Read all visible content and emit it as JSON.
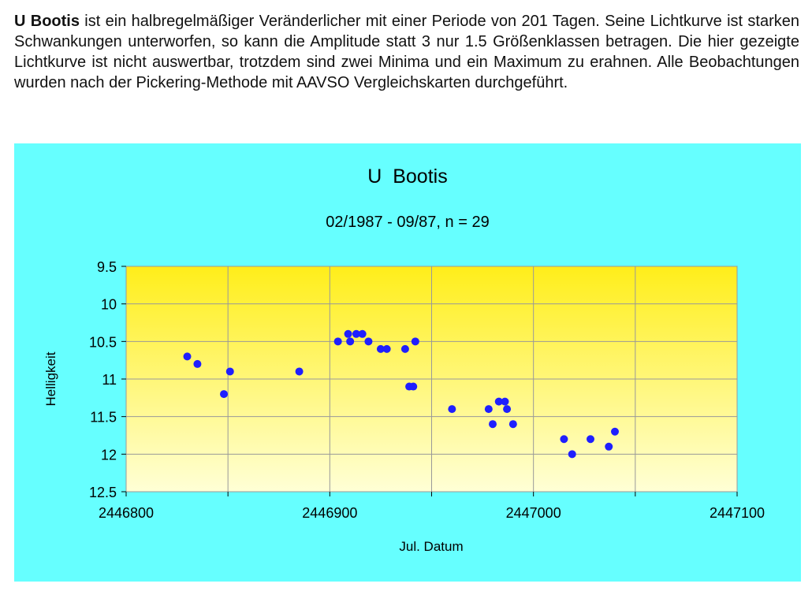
{
  "intro": {
    "star_name": "U Bootis",
    "text": " ist ein halbregelmäßiger Veränderlicher mit einer Periode von 201 Tagen. Seine Lichtkurve ist starken Schwankungen unterworfen, so kann die Amplitude statt 3 nur 1.5 Größenklassen betragen. Die hier gezeigte Lichtkurve ist nicht auswertbar, trotzdem sind zwei Minima und ein Maximum zu erahnen. Alle Beobachtungen wurden nach der Pickering-Methode mit AAVSO Vergleichskarten durchgeführt."
  },
  "colors": {
    "panel_background": "#66ffff",
    "plot_gradient_top": "#ffee1a",
    "plot_gradient_bottom": "#ffffd6",
    "point_color": "#1f1fff",
    "grid_color": "#999999"
  },
  "chart_data": {
    "type": "scatter",
    "title": "U  Bootis",
    "subtitle": "02/1987 - 09/87, n = 29",
    "xlabel": "Jul. Datum",
    "ylabel": "Helligkeit",
    "xlim": [
      2446800,
      2447100
    ],
    "ylim": [
      9.5,
      12.5
    ],
    "y_inverted": true,
    "x_ticks": [
      2446800,
      2446850,
      2446900,
      2446950,
      2447000,
      2447050,
      2447100
    ],
    "x_tick_labels": [
      "2446800",
      "",
      "2446900",
      "",
      "2447000",
      "",
      "2447100"
    ],
    "y_ticks": [
      9.5,
      10,
      10.5,
      11,
      11.5,
      12,
      12.5
    ],
    "y_tick_labels": [
      "9.5",
      "10",
      "10.5",
      "11",
      "11.5",
      "12",
      "12.5"
    ],
    "grid": true,
    "points": [
      {
        "x": 2446830,
        "y": 10.7
      },
      {
        "x": 2446835,
        "y": 10.8
      },
      {
        "x": 2446848,
        "y": 11.2
      },
      {
        "x": 2446851,
        "y": 10.9
      },
      {
        "x": 2446885,
        "y": 10.9
      },
      {
        "x": 2446904,
        "y": 10.5
      },
      {
        "x": 2446909,
        "y": 10.4
      },
      {
        "x": 2446910,
        "y": 10.5
      },
      {
        "x": 2446913,
        "y": 10.4
      },
      {
        "x": 2446916,
        "y": 10.4
      },
      {
        "x": 2446919,
        "y": 10.5
      },
      {
        "x": 2446925,
        "y": 10.6
      },
      {
        "x": 2446928,
        "y": 10.6
      },
      {
        "x": 2446937,
        "y": 10.6
      },
      {
        "x": 2446939,
        "y": 11.1
      },
      {
        "x": 2446941,
        "y": 11.1
      },
      {
        "x": 2446942,
        "y": 10.5
      },
      {
        "x": 2446960,
        "y": 11.4
      },
      {
        "x": 2446978,
        "y": 11.4
      },
      {
        "x": 2446980,
        "y": 11.6
      },
      {
        "x": 2446983,
        "y": 11.3
      },
      {
        "x": 2446986,
        "y": 11.3
      },
      {
        "x": 2446987,
        "y": 11.4
      },
      {
        "x": 2446990,
        "y": 11.6
      },
      {
        "x": 2447015,
        "y": 11.8
      },
      {
        "x": 2447019,
        "y": 12.0
      },
      {
        "x": 2447028,
        "y": 11.8
      },
      {
        "x": 2447037,
        "y": 11.9
      },
      {
        "x": 2447040,
        "y": 11.7
      }
    ]
  }
}
